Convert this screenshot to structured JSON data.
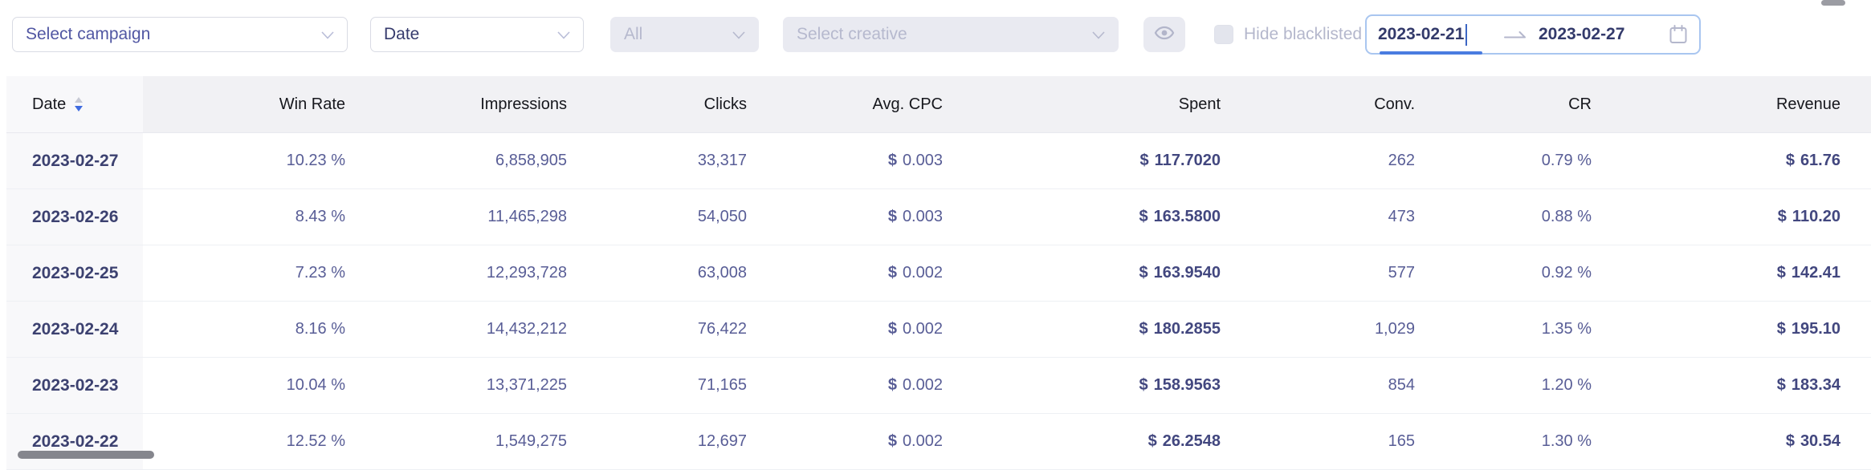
{
  "filters": {
    "campaign_select": {
      "placeholder": "Select campaign",
      "disabled": false
    },
    "group_by_select": {
      "value": "Date",
      "disabled": false
    },
    "status_select": {
      "value": "All",
      "disabled": true
    },
    "creative_select": {
      "placeholder": "Select creative",
      "disabled": true
    },
    "eye_button": {
      "icon": "eye-icon",
      "disabled": true
    },
    "hide_blacklisted": {
      "label": "Hide blacklisted",
      "checked": false,
      "disabled": true
    },
    "date_range": {
      "start": "2023-02-21",
      "end": "2023-02-27",
      "focused_input": "start",
      "icon": "calendar-icon"
    }
  },
  "table": {
    "currency_symbol": "$",
    "columns": [
      {
        "key": "date",
        "label": "Date",
        "align": "left",
        "sortable": true,
        "sort": "descend"
      },
      {
        "key": "win_rate",
        "label": "Win Rate",
        "align": "right"
      },
      {
        "key": "impressions",
        "label": "Impressions",
        "align": "right"
      },
      {
        "key": "clicks",
        "label": "Clicks",
        "align": "right"
      },
      {
        "key": "avg_cpc",
        "label": "Avg. CPC",
        "align": "right",
        "currency": true
      },
      {
        "key": "spent",
        "label": "Spent",
        "align": "right",
        "currency": true,
        "bold": true
      },
      {
        "key": "conv",
        "label": "Conv.",
        "align": "right"
      },
      {
        "key": "cr",
        "label": "CR",
        "align": "right"
      },
      {
        "key": "revenue",
        "label": "Revenue",
        "align": "right",
        "currency": true,
        "bold": true
      }
    ],
    "rows": [
      {
        "date": "2023-02-27",
        "win_rate": "10.23 %",
        "impressions": "6,858,905",
        "clicks": "33,317",
        "avg_cpc": "0.003",
        "spent": "117.7020",
        "conv": "262",
        "cr": "0.79 %",
        "revenue": "61.76"
      },
      {
        "date": "2023-02-26",
        "win_rate": "8.43 %",
        "impressions": "11,465,298",
        "clicks": "54,050",
        "avg_cpc": "0.003",
        "spent": "163.5800",
        "conv": "473",
        "cr": "0.88 %",
        "revenue": "110.20"
      },
      {
        "date": "2023-02-25",
        "win_rate": "7.23 %",
        "impressions": "12,293,728",
        "clicks": "63,008",
        "avg_cpc": "0.002",
        "spent": "163.9540",
        "conv": "577",
        "cr": "0.92 %",
        "revenue": "142.41"
      },
      {
        "date": "2023-02-24",
        "win_rate": "8.16 %",
        "impressions": "14,432,212",
        "clicks": "76,422",
        "avg_cpc": "0.002",
        "spent": "180.2855",
        "conv": "1,029",
        "cr": "1.35 %",
        "revenue": "195.10"
      },
      {
        "date": "2023-02-23",
        "win_rate": "10.04 %",
        "impressions": "13,371,225",
        "clicks": "71,165",
        "avg_cpc": "0.002",
        "spent": "158.9563",
        "conv": "854",
        "cr": "1.20 %",
        "revenue": "183.34"
      },
      {
        "date": "2023-02-22",
        "win_rate": "12.52 %",
        "impressions": "1,549,275",
        "clicks": "12,697",
        "avg_cpc": "0.002",
        "spent": "26.2548",
        "conv": "165",
        "cr": "1.30 %",
        "revenue": "30.54"
      }
    ]
  },
  "colors": {
    "accent_blue": "#4a7ce0",
    "sort_active": "#3f6be0",
    "sort_inactive": "#c7c9d4",
    "text_indigo": "#585d96",
    "text_dark_indigo": "#3c4170",
    "disabled_bg": "#e9eaf1",
    "disabled_text": "#b6b9ce",
    "header_bg": "#f1f1f4",
    "fixed_col_bg": "#f8f8fa",
    "picker_border": "#a9c6f0"
  }
}
